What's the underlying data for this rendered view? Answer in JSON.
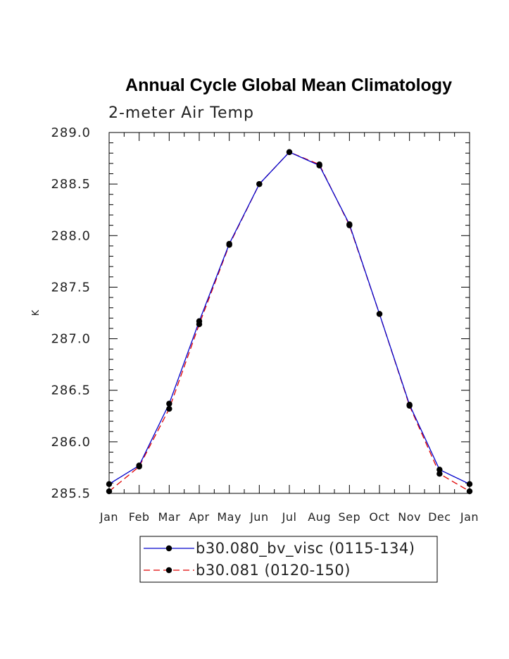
{
  "chart_data": {
    "type": "line",
    "title": "Annual Cycle Global Mean Climatology",
    "subtitle": "2-meter Air Temp",
    "xlabel": "",
    "ylabel": "K",
    "categories": [
      "Jan",
      "Feb",
      "Mar",
      "Apr",
      "May",
      "Jun",
      "Jul",
      "Aug",
      "Sep",
      "Oct",
      "Nov",
      "Dec",
      "Jan"
    ],
    "ylim": [
      285.5,
      289.0
    ],
    "yticks": [
      "285.5",
      "286.0",
      "286.5",
      "287.0",
      "287.5",
      "288.0",
      "288.5",
      "289.0"
    ],
    "legend_position": "bottom",
    "series": [
      {
        "name": "b30.080_bv_visc (0115-134)",
        "color": "#0000cc",
        "dash": "solid",
        "values": [
          285.59,
          285.77,
          286.37,
          287.17,
          287.92,
          288.5,
          288.81,
          288.68,
          288.11,
          287.24,
          286.36,
          285.73,
          285.59
        ]
      },
      {
        "name": "b30.081 (0120-150)",
        "color": "#e00000",
        "dash": "dashed",
        "values": [
          285.52,
          285.76,
          286.32,
          287.14,
          287.91,
          288.5,
          288.81,
          288.69,
          288.1,
          287.24,
          286.35,
          285.69,
          285.52
        ]
      }
    ]
  }
}
